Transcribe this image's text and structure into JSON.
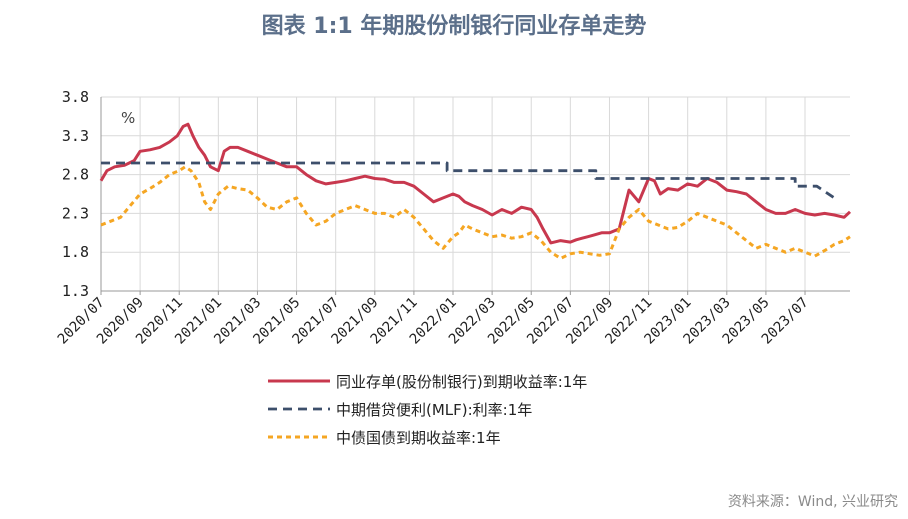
{
  "title": "图表 1:1 年期股份制银行同业存单走势",
  "source": "资料来源：Wind, 兴业研究",
  "colors": {
    "ncd": "#c8384e",
    "mlf": "#3d4f6b",
    "govt": "#f5a623",
    "grid": "#d9d9d9",
    "axis": "#999999"
  },
  "chart_data": {
    "type": "line",
    "unit_label": "%",
    "ylim": [
      1.3,
      3.8
    ],
    "yticks": [
      3.8,
      3.3,
      2.8,
      2.3,
      1.8,
      1.3
    ],
    "ytick_labels": [
      "3.8",
      "3.3",
      "2.8",
      "2.3",
      "1.8",
      "1.3"
    ],
    "x_range": [
      0,
      38.3
    ],
    "xticks": [
      0,
      2,
      4,
      6,
      8,
      10,
      12,
      14,
      16,
      18,
      20,
      22,
      24,
      26,
      28,
      30,
      32,
      34,
      36
    ],
    "xtick_labels": [
      "2020/07",
      "2020/09",
      "2020/11",
      "2021/01",
      "2021/03",
      "2021/05",
      "2021/07",
      "2021/09",
      "2021/11",
      "2022/01",
      "2022/03",
      "2022/05",
      "2022/07",
      "2022/09",
      "2022/11",
      "2023/01",
      "2023/03",
      "2023/05",
      "2023/07"
    ],
    "series": [
      {
        "name": "同业存单(股份制银行)到期收益率:1年",
        "key": "ncd",
        "style": "solid",
        "x": [
          0,
          0.3,
          0.7,
          1.2,
          1.7,
          2.0,
          2.5,
          3.0,
          3.5,
          3.9,
          4.2,
          4.45,
          4.7,
          5.0,
          5.3,
          5.6,
          6.0,
          6.3,
          6.6,
          7.0,
          7.5,
          8.0,
          8.5,
          9.0,
          9.5,
          10.0,
          10.5,
          11.0,
          11.5,
          12.0,
          12.5,
          13.0,
          13.5,
          14.0,
          14.5,
          15.0,
          15.5,
          16.0,
          16.5,
          17.0,
          17.5,
          18.0,
          18.3,
          18.6,
          19.0,
          19.5,
          20.0,
          20.5,
          21.0,
          21.5,
          22.0,
          22.3,
          22.6,
          23.0,
          23.5,
          24.0,
          24.3,
          24.6,
          24.9,
          25.2,
          25.6,
          26.0,
          26.5,
          27.0,
          27.5,
          28.0,
          28.3,
          28.6,
          29.0,
          29.5,
          30.0,
          30.5,
          31.0,
          31.5,
          32.0,
          32.5,
          33.0,
          33.5,
          34.0,
          34.5,
          35.0,
          35.5,
          36.0,
          36.5,
          37.0,
          37.5,
          38.0,
          38.3
        ],
        "values": [
          2.72,
          2.85,
          2.9,
          2.92,
          2.98,
          3.1,
          3.12,
          3.15,
          3.22,
          3.3,
          3.42,
          3.45,
          3.3,
          3.15,
          3.05,
          2.9,
          2.85,
          3.1,
          3.15,
          3.15,
          3.1,
          3.05,
          3.0,
          2.95,
          2.9,
          2.9,
          2.8,
          2.72,
          2.68,
          2.7,
          2.72,
          2.75,
          2.78,
          2.75,
          2.74,
          2.7,
          2.7,
          2.65,
          2.55,
          2.45,
          2.5,
          2.55,
          2.52,
          2.45,
          2.4,
          2.35,
          2.28,
          2.35,
          2.3,
          2.38,
          2.35,
          2.25,
          2.1,
          1.92,
          1.95,
          1.93,
          1.96,
          1.98,
          2.0,
          2.02,
          2.05,
          2.05,
          2.1,
          2.6,
          2.45,
          2.75,
          2.72,
          2.55,
          2.62,
          2.6,
          2.68,
          2.65,
          2.75,
          2.7,
          2.6,
          2.58,
          2.55,
          2.45,
          2.35,
          2.3,
          2.3,
          2.35,
          2.3,
          2.28,
          2.3,
          2.28,
          2.25,
          2.32
        ]
      },
      {
        "name": "中期借贷便利(MLF):利率:1年",
        "key": "mlf",
        "style": "dashed",
        "x": [
          0,
          17.7,
          17.7,
          25.3,
          25.3,
          35.5,
          35.5,
          36.6,
          36.6,
          37.5
        ],
        "values": [
          2.95,
          2.95,
          2.85,
          2.85,
          2.75,
          2.75,
          2.65,
          2.65,
          2.65,
          2.5
        ]
      },
      {
        "name": "中债国债到期收益率:1年",
        "key": "govt",
        "style": "dashed",
        "x": [
          0,
          0.5,
          1.0,
          1.5,
          2.0,
          2.5,
          3.0,
          3.5,
          4.0,
          4.3,
          4.6,
          5.0,
          5.3,
          5.6,
          6.0,
          6.5,
          7.0,
          7.5,
          8.0,
          8.5,
          9.0,
          9.5,
          10.0,
          10.5,
          11.0,
          11.5,
          12.0,
          12.5,
          13.0,
          13.5,
          14.0,
          14.5,
          15.0,
          15.5,
          16.0,
          16.5,
          17.0,
          17.5,
          18.0,
          18.3,
          18.6,
          19.0,
          19.5,
          20.0,
          20.5,
          21.0,
          21.5,
          22.0,
          22.5,
          23.0,
          23.5,
          24.0,
          24.5,
          25.0,
          25.5,
          26.0,
          26.5,
          27.0,
          27.5,
          28.0,
          28.5,
          29.0,
          29.5,
          30.0,
          30.5,
          31.0,
          31.5,
          32.0,
          32.5,
          33.0,
          33.5,
          34.0,
          34.5,
          35.0,
          35.5,
          36.0,
          36.5,
          37.0,
          37.5,
          38.0,
          38.3
        ],
        "values": [
          2.15,
          2.2,
          2.25,
          2.4,
          2.55,
          2.62,
          2.7,
          2.8,
          2.85,
          2.9,
          2.85,
          2.7,
          2.45,
          2.35,
          2.55,
          2.65,
          2.62,
          2.6,
          2.5,
          2.38,
          2.35,
          2.45,
          2.5,
          2.3,
          2.15,
          2.2,
          2.3,
          2.35,
          2.4,
          2.35,
          2.3,
          2.3,
          2.25,
          2.35,
          2.25,
          2.1,
          1.95,
          1.85,
          2.0,
          2.05,
          2.15,
          2.1,
          2.05,
          2.0,
          2.02,
          1.98,
          2.0,
          2.05,
          1.95,
          1.8,
          1.72,
          1.78,
          1.8,
          1.78,
          1.76,
          1.78,
          2.1,
          2.25,
          2.35,
          2.2,
          2.15,
          2.1,
          2.12,
          2.2,
          2.3,
          2.25,
          2.2,
          2.15,
          2.05,
          1.95,
          1.85,
          1.9,
          1.85,
          1.8,
          1.85,
          1.8,
          1.75,
          1.82,
          1.9,
          1.95,
          2.0
        ]
      }
    ]
  }
}
